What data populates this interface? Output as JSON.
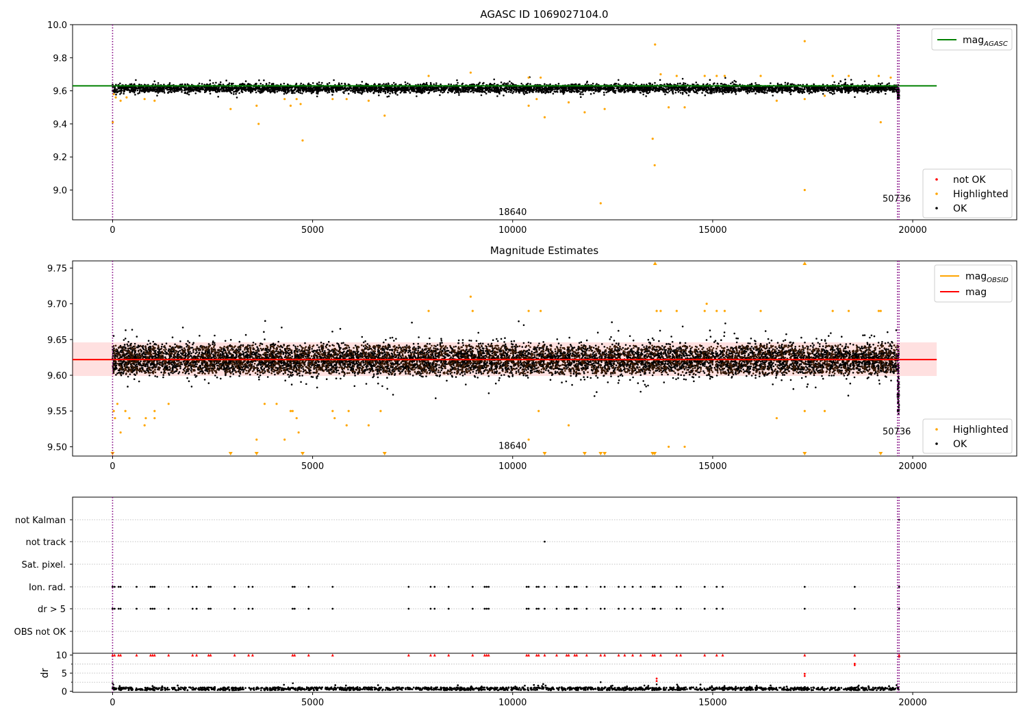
{
  "chart_data": [
    {
      "type": "scatter",
      "title": "AGASC ID 1069027104.0",
      "xlabel": "",
      "ylabel": "",
      "xlim": [
        -1000,
        22600
      ],
      "ylim": [
        8.82,
        10.0
      ],
      "xticks": [
        0,
        5000,
        10000,
        15000,
        20000
      ],
      "xtick_labels": [
        "0",
        "5000",
        "10000",
        "15000",
        "20000"
      ],
      "yticks": [
        9.0,
        9.2,
        9.4,
        9.6,
        9.8,
        10.0
      ],
      "ytick_labels": [
        "9.0",
        "9.2",
        "9.4",
        "9.6",
        "9.8",
        "10.0"
      ],
      "vlines": [
        0,
        19620,
        19660
      ],
      "annotations": [
        {
          "text": "18640",
          "x": 10000,
          "y": 8.85
        },
        {
          "text": "50736",
          "x": 19600,
          "y": 8.93
        }
      ],
      "mag_agasc": {
        "value": 9.63,
        "x_range": [
          0,
          20600
        ]
      },
      "ok_band": {
        "center": 9.615,
        "spread": 0.025,
        "x_range": [
          0,
          19650
        ],
        "count": 5200
      },
      "highlighted": [
        [
          5,
          9.41
        ],
        [
          30,
          9.58
        ],
        [
          80,
          9.56
        ],
        [
          200,
          9.54
        ],
        [
          350,
          9.56
        ],
        [
          800,
          9.55
        ],
        [
          1050,
          9.54
        ],
        [
          2950,
          9.49
        ],
        [
          3600,
          9.51
        ],
        [
          3650,
          9.4
        ],
        [
          4300,
          9.55
        ],
        [
          4450,
          9.51
        ],
        [
          4600,
          9.55
        ],
        [
          4700,
          9.52
        ],
        [
          4750,
          9.3
        ],
        [
          5500,
          9.55
        ],
        [
          5850,
          9.55
        ],
        [
          6400,
          9.54
        ],
        [
          6800,
          9.45
        ],
        [
          7900,
          9.69
        ],
        [
          8950,
          9.71
        ],
        [
          10400,
          9.51
        ],
        [
          10400,
          9.68
        ],
        [
          10600,
          9.55
        ],
        [
          10700,
          9.68
        ],
        [
          10800,
          9.44
        ],
        [
          11400,
          9.53
        ],
        [
          11800,
          9.47
        ],
        [
          12200,
          8.92
        ],
        [
          12300,
          9.49
        ],
        [
          13500,
          9.31
        ],
        [
          13550,
          9.15
        ],
        [
          13560,
          9.88
        ],
        [
          13700,
          9.7
        ],
        [
          13900,
          9.5
        ],
        [
          14100,
          9.69
        ],
        [
          14300,
          9.5
        ],
        [
          14800,
          9.69
        ],
        [
          15100,
          9.69
        ],
        [
          15300,
          9.69
        ],
        [
          16200,
          9.69
        ],
        [
          16600,
          9.54
        ],
        [
          17300,
          9.55
        ],
        [
          17300,
          9.9
        ],
        [
          17300,
          9.0
        ],
        [
          17800,
          9.57
        ],
        [
          18000,
          9.69
        ],
        [
          18400,
          9.69
        ],
        [
          19150,
          9.69
        ],
        [
          19200,
          9.41
        ],
        [
          19450,
          9.68
        ]
      ],
      "not_ok": [],
      "legend_lines": [
        {
          "label": "mag",
          "sub": "AGASC",
          "color": "#008000"
        }
      ],
      "legend_points": [
        {
          "label": "not OK",
          "color": "#ff0000"
        },
        {
          "label": "Highlighted",
          "color": "#ffa500"
        },
        {
          "label": "OK",
          "color": "#000000"
        }
      ],
      "legend_lines_position": "upper right",
      "legend_points_position": "lower right"
    },
    {
      "type": "scatter",
      "title": "Magnitude Estimates",
      "xlabel": "",
      "ylabel": "",
      "xlim": [
        -1000,
        22600
      ],
      "ylim": [
        9.487,
        9.76
      ],
      "xticks": [
        0,
        5000,
        10000,
        15000,
        20000
      ],
      "xtick_labels": [
        "0",
        "5000",
        "10000",
        "15000",
        "20000"
      ],
      "yticks": [
        9.5,
        9.55,
        9.6,
        9.65,
        9.7,
        9.75
      ],
      "ytick_labels": [
        "9.50",
        "9.55",
        "9.60",
        "9.65",
        "9.70",
        "9.75"
      ],
      "vlines": [
        0,
        19620,
        19660
      ],
      "annotations": [
        {
          "text": "18640",
          "x": 10000,
          "y": 9.497
        },
        {
          "text": "50736",
          "x": 19600,
          "y": 9.517
        }
      ],
      "mag_obsid": {
        "value": 9.622
      },
      "mag": {
        "value": 9.622,
        "band": [
          9.599,
          9.646
        ],
        "x_range": [
          -1000,
          20600
        ]
      },
      "ok_band": {
        "center": 9.622,
        "spread": 0.02,
        "x_range": [
          0,
          19650
        ],
        "count": 8000
      },
      "highlighted": [
        [
          30,
          9.55
        ],
        [
          60,
          9.54
        ],
        [
          120,
          9.56
        ],
        [
          200,
          9.52
        ],
        [
          320,
          9.55
        ],
        [
          420,
          9.54
        ],
        [
          800,
          9.53
        ],
        [
          830,
          9.54
        ],
        [
          1050,
          9.54
        ],
        [
          1050,
          9.55
        ],
        [
          1400,
          9.56
        ],
        [
          3600,
          9.51
        ],
        [
          3800,
          9.56
        ],
        [
          4100,
          9.56
        ],
        [
          4300,
          9.51
        ],
        [
          4450,
          9.55
        ],
        [
          4500,
          9.55
        ],
        [
          4600,
          9.54
        ],
        [
          4650,
          9.52
        ],
        [
          5500,
          9.55
        ],
        [
          5550,
          9.54
        ],
        [
          5850,
          9.53
        ],
        [
          5900,
          9.55
        ],
        [
          6400,
          9.53
        ],
        [
          6700,
          9.55
        ],
        [
          7900,
          9.69
        ],
        [
          8950,
          9.71
        ],
        [
          9000,
          9.69
        ],
        [
          10400,
          9.69
        ],
        [
          10400,
          9.51
        ],
        [
          10650,
          9.55
        ],
        [
          10700,
          9.69
        ],
        [
          11400,
          9.53
        ],
        [
          13600,
          9.69
        ],
        [
          13700,
          9.69
        ],
        [
          13900,
          9.5
        ],
        [
          14100,
          9.69
        ],
        [
          14300,
          9.5
        ],
        [
          14800,
          9.69
        ],
        [
          14850,
          9.7
        ],
        [
          15100,
          9.69
        ],
        [
          15300,
          9.69
        ],
        [
          16200,
          9.69
        ],
        [
          16600,
          9.54
        ],
        [
          17300,
          9.55
        ],
        [
          17800,
          9.55
        ],
        [
          18000,
          9.69
        ],
        [
          18400,
          9.69
        ],
        [
          19150,
          9.69
        ],
        [
          19200,
          9.69
        ]
      ],
      "down_markers": [
        0,
        2950,
        3600,
        4750,
        6800,
        10800,
        11800,
        12200,
        12300,
        13500,
        13550,
        17300,
        19200
      ],
      "up_markers": [
        13560,
        17300
      ],
      "legend_lines": [
        {
          "label": "mag",
          "sub": "OBSID",
          "color": "#ffa500"
        },
        {
          "label": "mag",
          "sub": "",
          "color": "#ff0000"
        }
      ],
      "legend_points": [
        {
          "label": "Highlighted",
          "color": "#ffa500"
        },
        {
          "label": "OK",
          "color": "#000000"
        }
      ],
      "legend_lines_position": "upper right",
      "legend_points_position": "lower right"
    },
    {
      "type": "scatter",
      "title": "",
      "xlabel": "",
      "ylabel": "",
      "xlim": [
        -1000,
        22600
      ],
      "categories": [
        "not Kalman",
        "not track",
        "Sat. pixel.",
        "Ion. rad.",
        "dr > 5",
        "OBS not OK"
      ],
      "flag_points": {
        "not Kalman": [
          19660
        ],
        "not track": [
          10800
        ],
        "Sat. pixel.": [],
        "Ion. rad.": [
          0,
          50,
          150,
          200,
          600,
          950,
          1000,
          1050,
          1400,
          2000,
          2100,
          2400,
          2450,
          3050,
          3400,
          3500,
          4500,
          4550,
          4900,
          5500,
          7400,
          7950,
          8050,
          8400,
          9000,
          9300,
          9350,
          9400,
          10350,
          10400,
          10600,
          10650,
          10800,
          11100,
          11350,
          11400,
          11550,
          11600,
          11850,
          12200,
          12300,
          12650,
          12800,
          13000,
          13200,
          13500,
          13550,
          13700,
          14100,
          14200,
          14800,
          15100,
          15250,
          17300,
          18550,
          19660
        ],
        "dr > 5": [
          0,
          50,
          150,
          200,
          600,
          950,
          1000,
          1050,
          1400,
          2000,
          2100,
          2400,
          2450,
          3050,
          3400,
          3500,
          4500,
          4550,
          4900,
          5500,
          7400,
          7950,
          8050,
          8400,
          9000,
          9300,
          9350,
          9400,
          10350,
          10400,
          10600,
          10650,
          10800,
          11100,
          11350,
          11400,
          11550,
          11600,
          11850,
          12200,
          12300,
          12650,
          12800,
          13000,
          13200,
          13500,
          13550,
          13700,
          14100,
          14200,
          14800,
          15100,
          15250,
          17300,
          18550,
          19660
        ],
        "OBS not OK": []
      },
      "vlines": [
        0,
        19620,
        19660
      ]
    },
    {
      "type": "scatter",
      "title": "",
      "xlabel": "",
      "ylabel": "dr",
      "xlim": [
        -1000,
        22600
      ],
      "ylim": [
        -0.3,
        10.5
      ],
      "xticks": [
        0,
        5000,
        10000,
        15000,
        20000
      ],
      "xtick_labels": [
        "0",
        "5000",
        "10000",
        "15000",
        "20000"
      ],
      "yticks": [
        0,
        5,
        10
      ],
      "ytick_labels": [
        "0",
        "5",
        "10"
      ],
      "minor_yticks": [
        2.5,
        7.5
      ],
      "dotted_lines": [
        2.5,
        5,
        7.5
      ],
      "vlines": [
        0,
        19620,
        19660
      ],
      "capped": {
        "value": 10,
        "x": [
          0,
          50,
          150,
          200,
          600,
          950,
          1000,
          1050,
          1400,
          2000,
          2100,
          2400,
          2450,
          3050,
          3400,
          3500,
          4500,
          4550,
          4900,
          5500,
          7400,
          7950,
          8050,
          8400,
          9000,
          9300,
          9350,
          9400,
          10350,
          10400,
          10600,
          10650,
          10800,
          11100,
          11350,
          11400,
          11550,
          11600,
          11850,
          12200,
          12300,
          12650,
          12800,
          13000,
          13200,
          13500,
          13550,
          13700,
          14100,
          14200,
          14800,
          15100,
          15250,
          17300,
          18550,
          19660
        ]
      },
      "red_points": [
        [
          13600,
          3.5
        ],
        [
          13600,
          2.8
        ],
        [
          17300,
          4.8
        ],
        [
          17300,
          4.2
        ],
        [
          18550,
          7.6
        ],
        [
          18550,
          7.2
        ],
        [
          19660,
          9.5
        ]
      ],
      "ok_band": {
        "center": 0.6,
        "spread": 0.5,
        "x_range": [
          0,
          19650
        ],
        "count": 3500
      },
      "extra_ok": [
        [
          0,
          2.2
        ],
        [
          20,
          1.8
        ],
        [
          12200,
          2.5
        ],
        [
          13600,
          1.9
        ]
      ]
    }
  ]
}
